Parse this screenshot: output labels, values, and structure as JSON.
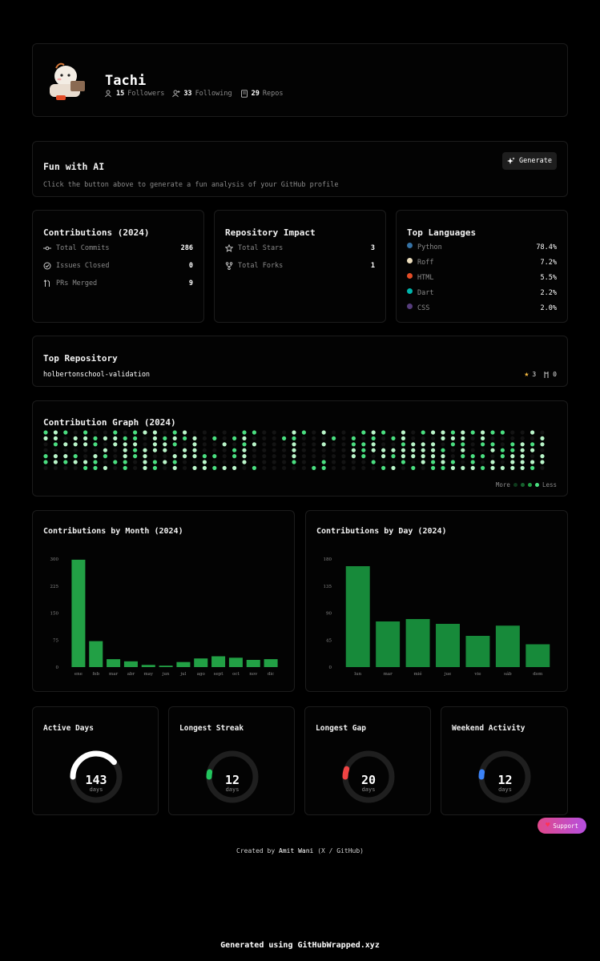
{
  "profile": {
    "name": "Tachi",
    "followers": "15",
    "followers_label": "Followers",
    "following": "33",
    "following_label": "Following",
    "repos": "29",
    "repos_label": "Repos"
  },
  "ai": {
    "title": "Fun with AI",
    "description": "Click the button above to generate a fun analysis of your GitHub profile",
    "button": "Generate"
  },
  "contributions": {
    "title": "Contributions (2024)",
    "items": [
      {
        "label": "Total Commits",
        "value": "286",
        "icon": "commit-icon"
      },
      {
        "label": "Issues Closed",
        "value": "0",
        "icon": "issue-closed-icon"
      },
      {
        "label": "PRs Merged",
        "value": "9",
        "icon": "pr-merged-icon"
      }
    ]
  },
  "impact": {
    "title": "Repository Impact",
    "items": [
      {
        "label": "Total Stars",
        "value": "3",
        "icon": "star-icon"
      },
      {
        "label": "Total Forks",
        "value": "1",
        "icon": "fork-icon"
      }
    ]
  },
  "languages": {
    "title": "Top Languages",
    "items": [
      {
        "name": "Python",
        "pct": "78.4%",
        "color": "#3572A5"
      },
      {
        "name": "Roff",
        "pct": "7.2%",
        "color": "#ecdebe"
      },
      {
        "name": "HTML",
        "pct": "5.5%",
        "color": "#e34c26"
      },
      {
        "name": "Dart",
        "pct": "2.2%",
        "color": "#00B4AB"
      },
      {
        "name": "CSS",
        "pct": "2.0%",
        "color": "#563d7c"
      }
    ]
  },
  "top_repo": {
    "title": "Top Repository",
    "name": "holbertonschool-validation",
    "stars": "3",
    "forks": "0"
  },
  "graph": {
    "title": "Contribution Graph (2024)",
    "legend_more": "More",
    "legend_less": "Less"
  },
  "by_month": {
    "title": "Contributions by Month (2024)"
  },
  "by_day": {
    "title": "Contributions by Day (2024)"
  },
  "chart_data": [
    {
      "type": "bar",
      "title": "Contributions by Month (2024)",
      "categories": [
        "ene",
        "feb",
        "mar",
        "abr",
        "may",
        "jun",
        "jul",
        "ago",
        "sept",
        "oct",
        "nov",
        "dic"
      ],
      "values": [
        298,
        72,
        22,
        16,
        6,
        4,
        14,
        24,
        30,
        26,
        20,
        22
      ],
      "yticks": [
        "0",
        "75",
        "150",
        "225",
        "300"
      ],
      "ylim": [
        0,
        300
      ],
      "color": "#22a045"
    },
    {
      "type": "bar",
      "title": "Contributions by Day (2024)",
      "categories": [
        "lun",
        "mar",
        "mié",
        "jue",
        "vie",
        "sáb",
        "dom"
      ],
      "values": [
        168,
        76,
        80,
        72,
        52,
        69,
        38
      ],
      "yticks": [
        "0",
        "45",
        "90",
        "135",
        "180"
      ],
      "ylim": [
        0,
        180
      ],
      "color": "#178a3a"
    }
  ],
  "stats": [
    {
      "title": "Active Days",
      "value": "143",
      "unit": "days",
      "fraction": 0.39,
      "color": "#ffffff"
    },
    {
      "title": "Longest Streak",
      "value": "12",
      "unit": "days",
      "fraction": 0.033,
      "color": "#22c55e"
    },
    {
      "title": "Longest Gap",
      "value": "20",
      "unit": "days",
      "fraction": 0.055,
      "color": "#ef4444"
    },
    {
      "title": "Weekend Activity",
      "value": "12",
      "unit": "days",
      "fraction": 0.033,
      "color": "#3b82f6"
    }
  ],
  "support": {
    "label": "Support"
  },
  "footer": {
    "created_prefix": "Created by",
    "author": "Amit Wani",
    "links": "(X / GitHub)",
    "generated": "Generated using GitHubWrapped.xyz"
  }
}
